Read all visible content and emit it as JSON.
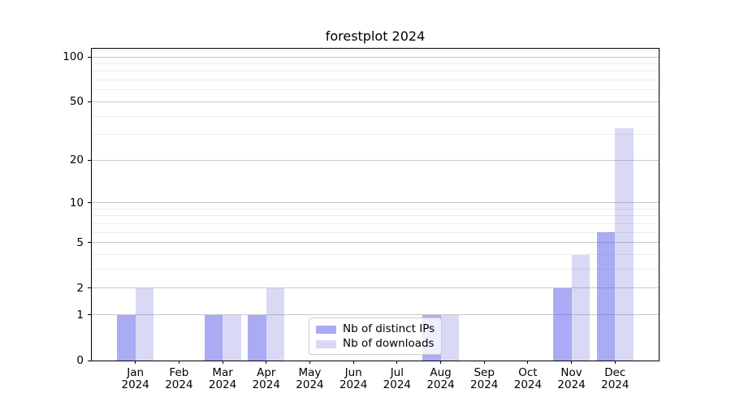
{
  "chart_data": {
    "type": "bar",
    "title": "forestplot 2024",
    "categories": [
      "Jan",
      "Feb",
      "Mar",
      "Apr",
      "May",
      "Jun",
      "Jul",
      "Aug",
      "Sep",
      "Oct",
      "Nov",
      "Dec"
    ],
    "year_label": "2024",
    "series": [
      {
        "name": "Nb of distinct IPs",
        "color": "#aaaaf5",
        "fill_rgba": "rgba(85,85,235,0.5)",
        "values": [
          1,
          0,
          1,
          1,
          0,
          0,
          0,
          1,
          0,
          0,
          2,
          6
        ]
      },
      {
        "name": "Nb of downloads",
        "color": "#d9d9f6",
        "fill_rgba": "rgba(100,100,220,0.245)",
        "values": [
          2,
          0,
          1,
          2,
          0,
          0,
          0,
          1,
          0,
          0,
          4,
          33
        ]
      }
    ],
    "y_scale": "log10(1+v)",
    "ylim": [
      0,
      113
    ],
    "y_tick_values": [
      0,
      1,
      2,
      5,
      10,
      20,
      50,
      100
    ],
    "y_tick_labels": [
      "0",
      "1",
      "2",
      "5",
      "10",
      "20",
      "50",
      "100"
    ],
    "y_major_gridlines": [
      1,
      2,
      5,
      10,
      20,
      50,
      100
    ],
    "y_minor_gridlines": [
      3,
      4,
      6,
      7,
      8,
      9,
      30,
      40,
      60,
      70,
      80,
      90,
      110
    ],
    "grid_major_color": "#c9c9c9",
    "grid_minor_color": "#ececec",
    "legend_position": "lower center",
    "xlabel": "",
    "ylabel": ""
  }
}
